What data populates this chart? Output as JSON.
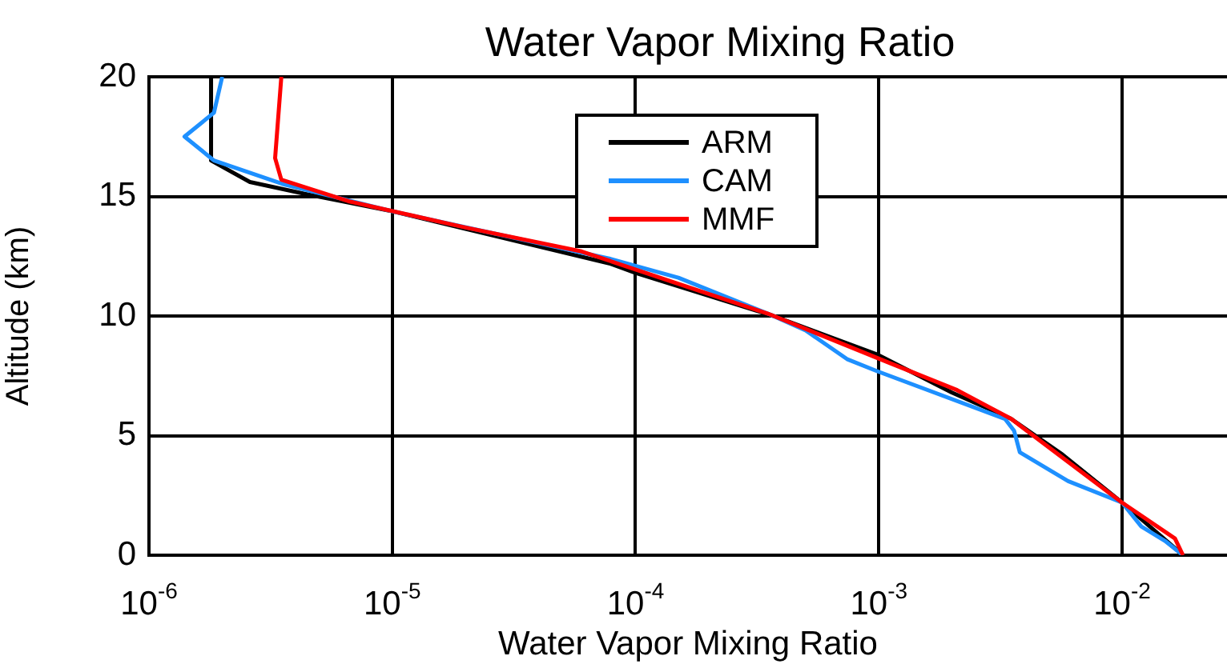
{
  "chart_data": {
    "type": "line",
    "title": "Water Vapor Mixing Ratio",
    "xlabel": "Water Vapor Mixing Ratio",
    "ylabel": "Altitude (km)",
    "log": "x",
    "grid": true,
    "legend": "top",
    "xlim": [
      1e-06,
      0.027
    ],
    "ylim": [
      0,
      20
    ],
    "xticks": [
      {
        "value": 1e-06,
        "label": "10$^{-6}$"
      },
      {
        "value": 1e-05,
        "label": "10$^{-5}$"
      },
      {
        "value": 0.0001,
        "label": "10$^{-4}$"
      },
      {
        "value": 0.001,
        "label": "10$^{-3}$"
      },
      {
        "value": 0.01,
        "label": "10$^{-2}$"
      }
    ],
    "yticks": [
      0,
      5,
      10,
      15,
      20
    ],
    "series": [
      {
        "name": "ARM",
        "color": "#000000",
        "x": [
          0.0178,
          0.01,
          0.0057,
          0.0035,
          0.002,
          0.00098,
          0.00037,
          0.0001,
          7.8e-05,
          9.8e-06,
          4.4e-06,
          2.6e-06,
          1.8e-06,
          1.8e-06
        ],
        "values": [
          0,
          2.2,
          4.2,
          5.7,
          6.8,
          8.4,
          10,
          11.8,
          12.2,
          14.4,
          15.1,
          15.6,
          16.5,
          20
        ]
      },
      {
        "name": "CAM",
        "color": "#1e90ff",
        "x": [
          0.0178,
          0.015,
          0.012,
          0.01,
          0.006,
          0.0038,
          0.0036,
          0.0033,
          0.00098,
          0.00074,
          0.0005,
          0.00035,
          0.00015,
          7.8e-05,
          9.8e-06,
          3.6e-06,
          1.85e-06,
          1.4e-06,
          1.85e-06,
          2e-06
        ],
        "values": [
          0,
          0.6,
          1.2,
          2.2,
          3.1,
          4.3,
          5.2,
          5.7,
          7.7,
          8.2,
          9.4,
          10.1,
          11.6,
          12.4,
          14.4,
          15.5,
          16.5,
          17.5,
          18.5,
          20
        ]
      },
      {
        "name": "MMF",
        "color": "#ff0000",
        "x": [
          0.0178,
          0.0165,
          0.01,
          0.0035,
          0.0021,
          0.00107,
          0.00035,
          6e-05,
          2e-05,
          6.6e-06,
          3.5e-06,
          3.3e-06,
          3.5e-06
        ],
        "values": [
          0,
          0.7,
          2.2,
          5.7,
          6.9,
          8.1,
          10.1,
          12.7,
          13.7,
          14.8,
          15.7,
          16.6,
          20
        ]
      }
    ]
  }
}
